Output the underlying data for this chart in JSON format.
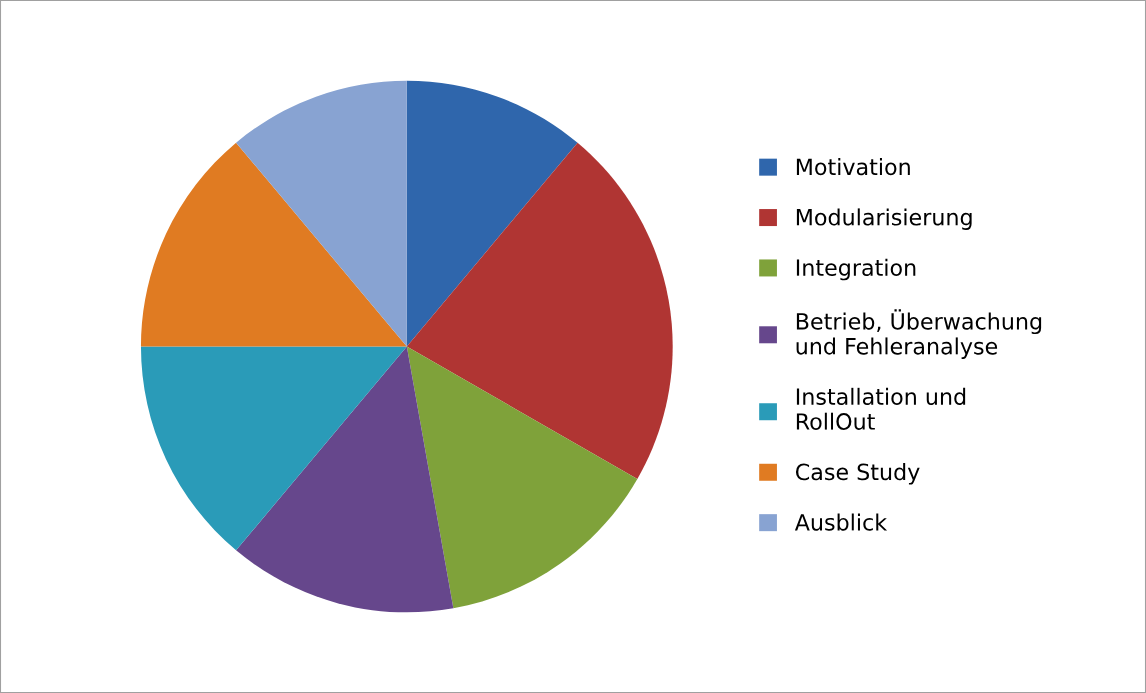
{
  "chart_data": {
    "type": "pie",
    "categories": [
      "Motivation",
      "Modularisierung",
      "Integration",
      "Betrieb, Überwachung und Fehleranalyse",
      "Installation und RollOut",
      "Case Study",
      "Ausblick"
    ],
    "values": [
      11.1,
      22.2,
      13.9,
      13.9,
      13.9,
      13.9,
      11.1
    ],
    "colors": [
      "#2f66ac",
      "#b03533",
      "#7fa23a",
      "#66478c",
      "#2a9bb8",
      "#e07b22",
      "#88a3d2"
    ],
    "legend": "right"
  }
}
